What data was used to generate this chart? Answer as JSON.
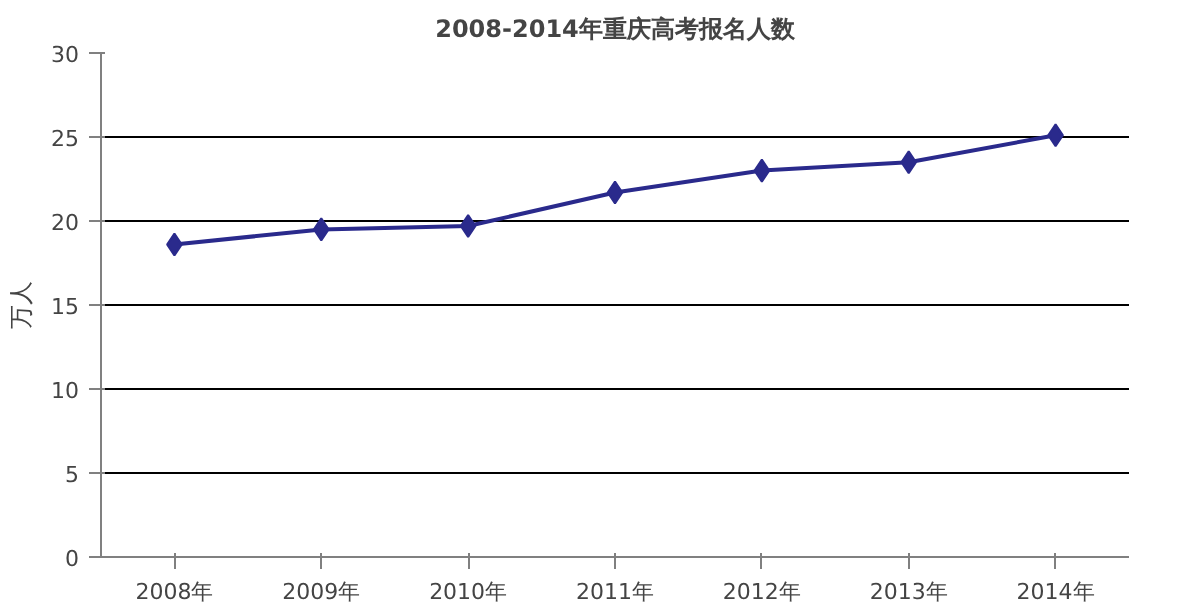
{
  "chart_data": {
    "type": "line",
    "title": "2008-2014年重庆高考报名人数",
    "ylabel": "万人",
    "categories": [
      "2008年",
      "2009年",
      "2010年",
      "2011年",
      "2012年",
      "2013年",
      "2014年"
    ],
    "series": [
      {
        "color": "#2a2a8c",
        "values": [
          18.6,
          19.5,
          19.7,
          21.7,
          23.0,
          23.5,
          25.1
        ]
      }
    ],
    "ylim": [
      0,
      30
    ],
    "yticks": [
      0,
      5,
      10,
      15,
      20,
      25,
      30
    ],
    "grid": "y",
    "marker": "diamond"
  }
}
